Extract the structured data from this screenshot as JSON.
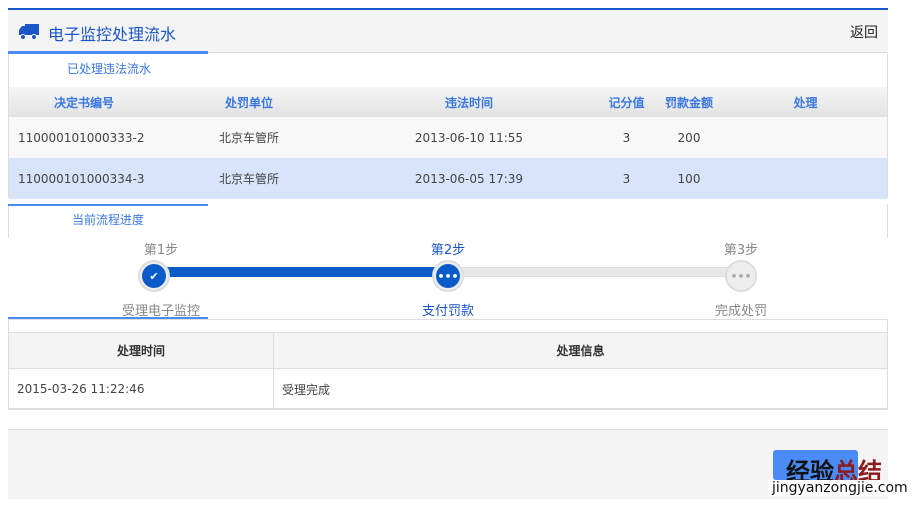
{
  "header": {
    "title": "电子监控处理流水",
    "back": "返回",
    "icon": "truck-icon"
  },
  "section1": {
    "label": "已处理违法流水",
    "columns": [
      "决定书编号",
      "处罚单位",
      "违法时间",
      "记分值",
      "罚款金额",
      "处理"
    ],
    "rows": [
      [
        "110000101000333-2",
        "北京车管所",
        "2013-06-10 11:55",
        "3",
        "200",
        ""
      ],
      [
        "110000101000334-3",
        "北京车管所",
        "2013-06-05 17:39",
        "3",
        "100",
        ""
      ]
    ]
  },
  "section2": {
    "label": "当前流程进度",
    "steps": [
      {
        "title": "第1步",
        "name": "受理电子监控",
        "status": "done"
      },
      {
        "title": "第2步",
        "name": "支付罚款",
        "status": "current"
      },
      {
        "title": "第3步",
        "name": "完成处罚",
        "status": "pending"
      }
    ],
    "progress_percent": 50
  },
  "section3": {
    "columns": [
      "处理时间",
      "处理信息"
    ],
    "rows": [
      [
        "2015-03-26 11:22:46",
        "受理完成"
      ]
    ]
  },
  "watermark": {
    "text1": "经验",
    "text2": "总结",
    "url": "jingyanzongjie.com"
  },
  "colors": {
    "accent": "#1a56c8",
    "tab": "#4a8af4",
    "selected_row": "#d7e4fb"
  }
}
